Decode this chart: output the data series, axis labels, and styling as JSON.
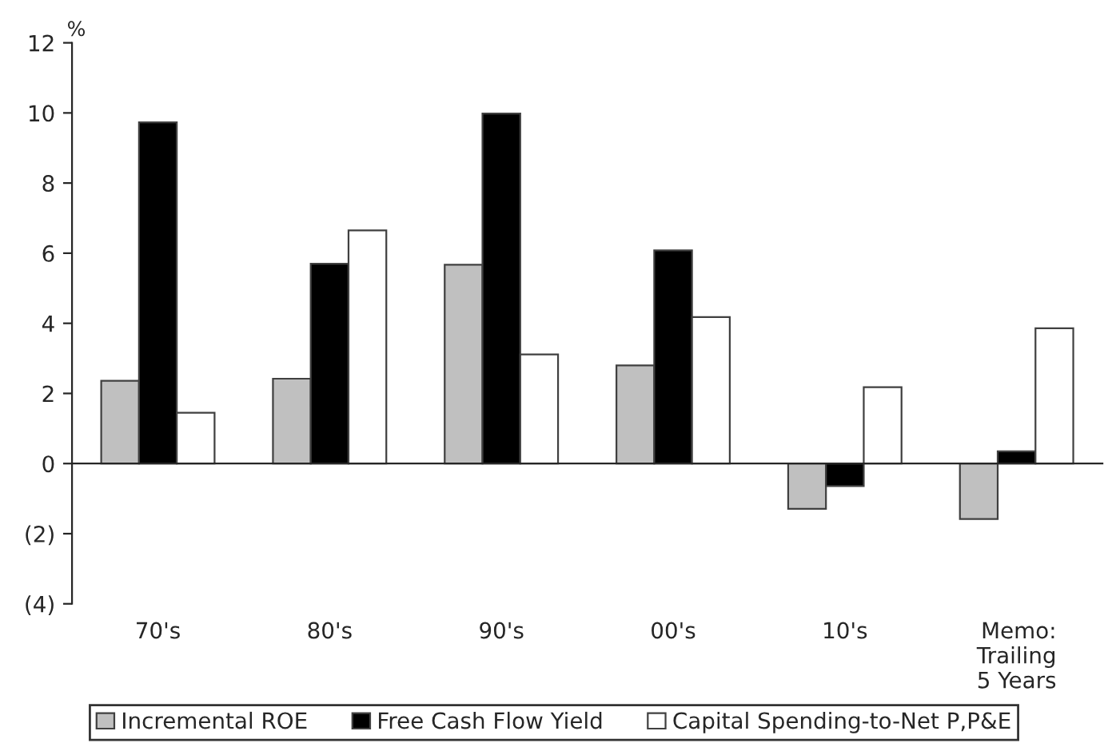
{
  "chart_data": {
    "type": "bar",
    "ylabel": "%",
    "categories": [
      "70's",
      "80's",
      "90's",
      "00's",
      "10's",
      "Memo:\nTrailing\n5 Years"
    ],
    "series": [
      {
        "name": "Incremental ROE",
        "color": "#c0c0c0",
        "values": [
          2.36,
          2.42,
          5.67,
          2.8,
          -1.29,
          -1.58
        ]
      },
      {
        "name": "Free Cash Flow Yield",
        "color": "#000000",
        "values": [
          9.73,
          5.7,
          9.98,
          6.08,
          -0.64,
          0.35
        ]
      },
      {
        "name": "Capital Spending-to-Net P,P&E",
        "color": "#ffffff",
        "values": [
          1.45,
          6.65,
          3.11,
          4.18,
          2.18,
          3.86
        ]
      }
    ],
    "ylim": [
      -4,
      12
    ],
    "yticks": [
      {
        "value": -4,
        "label": "(4)"
      },
      {
        "value": -2,
        "label": "(2)"
      },
      0,
      2,
      4,
      6,
      8,
      10,
      12
    ],
    "legend": "bottom"
  }
}
